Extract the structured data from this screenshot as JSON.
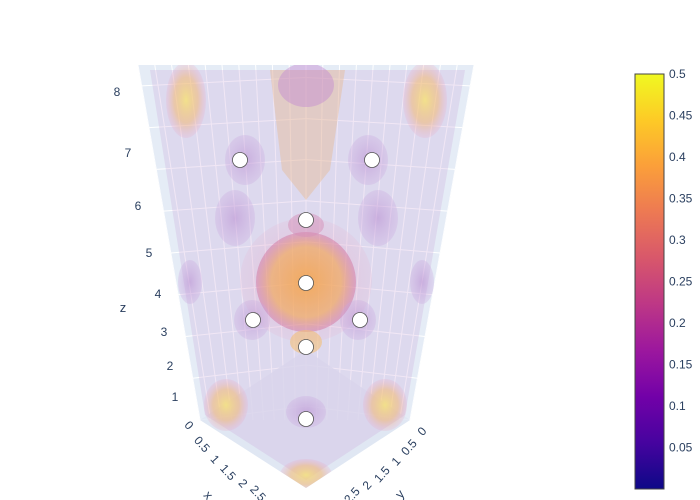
{
  "chart_data": {
    "type": "3d-volume",
    "title": "",
    "scene": {
      "z_axis": {
        "label": "z",
        "tick_labels": [
          "1",
          "2",
          "3",
          "4",
          "5",
          "6",
          "7",
          "8"
        ],
        "range": [
          0,
          8.5
        ]
      },
      "x_axis": {
        "label": "x",
        "tick_labels": [
          "0",
          "0.5",
          "1",
          "1.5",
          "2",
          "2.5"
        ]
      },
      "y_axis": {
        "label": "y",
        "tick_labels": [
          "0",
          "0.5",
          "1",
          "1.5",
          "2",
          "2.5"
        ]
      },
      "grid": true,
      "background": "#e5ecf6"
    },
    "colorbar": {
      "colorscale": "plasma",
      "colors": [
        "#0d0887",
        "#46039f",
        "#7201a8",
        "#9c179e",
        "#bd3786",
        "#d8576b",
        "#ed7953",
        "#fb9f3a",
        "#fdca26",
        "#f0f921"
      ],
      "tick_labels": [
        "0.05",
        "0.1",
        "0.15",
        "0.2",
        "0.25",
        "0.3",
        "0.35",
        "0.4",
        "0.45",
        "0.5"
      ],
      "tick_values": [
        0.05,
        0.1,
        0.15,
        0.2,
        0.25,
        0.3,
        0.35,
        0.4,
        0.45,
        0.5
      ],
      "min": 0.0,
      "max": 0.5,
      "placement": "right"
    },
    "atoms": {
      "color": "#ffffff",
      "count": 9
    }
  }
}
